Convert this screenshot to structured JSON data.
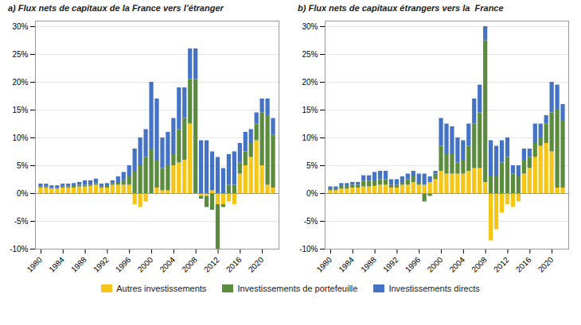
{
  "chart_data": [
    {
      "type": "bar",
      "title": "a) Flux nets de capitaux de la France vers l’étranger",
      "x": [
        1980,
        1981,
        1982,
        1983,
        1984,
        1985,
        1986,
        1987,
        1988,
        1989,
        1990,
        1991,
        1992,
        1993,
        1994,
        1995,
        1996,
        1997,
        1998,
        1999,
        2000,
        2001,
        2002,
        2003,
        2004,
        2005,
        2006,
        2007,
        2008,
        2009,
        2010,
        2011,
        2012,
        2013,
        2014,
        2015,
        2016,
        2017,
        2018,
        2019,
        2020,
        2021,
        2022
      ],
      "series": [
        {
          "name": "Autres investissements",
          "color": "#F5C518",
          "values": [
            1.0,
            1.0,
            0.8,
            0.8,
            1.0,
            1.0,
            1.0,
            1.2,
            1.2,
            1.3,
            1.5,
            1.0,
            1.0,
            1.5,
            1.5,
            1.5,
            1.5,
            -2.0,
            -2.5,
            -1.5,
            0.0,
            1.0,
            0.5,
            0.5,
            5.0,
            5.5,
            6.0,
            12.5,
            0.0,
            -0.5,
            -0.5,
            0.5,
            -2.0,
            -2.0,
            -1.5,
            -2.0,
            3.5,
            5.0,
            6.5,
            9.5,
            5.0,
            1.5,
            1.0
          ]
        },
        {
          "name": "Investissements de portefeuille",
          "color": "#5B8C3E",
          "values": [
            0.2,
            0.2,
            0.1,
            0.1,
            0.2,
            0.2,
            0.3,
            0.3,
            0.3,
            0.2,
            0.3,
            0.2,
            0.3,
            0.3,
            0.5,
            0.8,
            1.5,
            4.0,
            5.0,
            6.5,
            8.0,
            5.0,
            4.0,
            4.5,
            2.0,
            6.0,
            7.5,
            8.0,
            20.5,
            -0.5,
            -2.0,
            -3.0,
            -8.0,
            -0.5,
            1.5,
            1.5,
            2.0,
            2.5,
            2.5,
            3.0,
            9.5,
            12.5,
            9.5
          ]
        },
        {
          "name": "Investissements directs",
          "color": "#4472C4",
          "values": [
            0.5,
            0.5,
            0.5,
            0.5,
            0.5,
            0.5,
            0.5,
            0.5,
            0.8,
            0.8,
            0.8,
            0.5,
            0.5,
            0.5,
            1.0,
            1.5,
            2.0,
            4.0,
            5.0,
            5.0,
            12.0,
            11.0,
            5.5,
            6.0,
            6.5,
            7.5,
            5.5,
            5.5,
            5.5,
            9.5,
            9.5,
            7.0,
            6.5,
            4.5,
            5.5,
            6.0,
            3.5,
            3.5,
            2.5,
            2.0,
            2.5,
            3.0,
            3.0
          ]
        }
      ],
      "xlim": [
        1979,
        2023
      ],
      "xticks": [
        1980,
        1984,
        1988,
        1992,
        1996,
        2000,
        2004,
        2008,
        2012,
        2016,
        2020
      ],
      "ylim": [
        -10,
        31
      ],
      "yticks": [
        {
          "value": -10,
          "label": "-10%"
        },
        {
          "value": -5,
          "label": "-5%"
        },
        {
          "value": 0,
          "label": "0%"
        },
        {
          "value": 5,
          "label": "5%"
        },
        {
          "value": 10,
          "label": "10%"
        },
        {
          "value": 15,
          "label": "15%"
        },
        {
          "value": 20,
          "label": "20%"
        },
        {
          "value": 25,
          "label": "25%"
        },
        {
          "value": 30,
          "label": "30%"
        }
      ],
      "stacked": true,
      "grid": true,
      "legend": "bottom"
    },
    {
      "type": "bar",
      "title": "b) Flux nets de capitaux étrangers vers la  France",
      "x": [
        1980,
        1981,
        1982,
        1983,
        1984,
        1985,
        1986,
        1987,
        1988,
        1989,
        1990,
        1991,
        1992,
        1993,
        1994,
        1995,
        1996,
        1997,
        1998,
        1999,
        2000,
        2001,
        2002,
        2003,
        2004,
        2005,
        2006,
        2007,
        2008,
        2009,
        2010,
        2011,
        2012,
        2013,
        2014,
        2015,
        2016,
        2017,
        2018,
        2019,
        2020,
        2021,
        2022
      ],
      "series": [
        {
          "name": "Autres investissements",
          "color": "#F5C518",
          "values": [
            0.5,
            0.5,
            0.8,
            0.8,
            1.0,
            1.0,
            1.2,
            1.2,
            1.3,
            1.5,
            1.5,
            1.0,
            1.0,
            1.5,
            1.5,
            2.0,
            1.5,
            1.5,
            2.0,
            2.5,
            4.0,
            3.5,
            3.5,
            3.5,
            3.5,
            4.0,
            4.5,
            4.5,
            2.0,
            -8.5,
            -6.5,
            -3.5,
            -2.0,
            -2.5,
            -1.5,
            3.5,
            4.5,
            6.5,
            8.5,
            9.0,
            7.5,
            1.0,
            1.0
          ]
        },
        {
          "name": "Investissements de portefeuille",
          "color": "#5B8C3E",
          "values": [
            0.2,
            0.2,
            0.5,
            0.5,
            0.5,
            0.5,
            1.0,
            1.0,
            1.0,
            1.0,
            1.0,
            0.5,
            0.5,
            0.5,
            1.0,
            1.0,
            0.5,
            -1.5,
            -0.5,
            1.0,
            4.5,
            3.5,
            3.5,
            2.0,
            2.5,
            4.5,
            8.0,
            10.0,
            25.5,
            3.0,
            3.0,
            5.5,
            6.5,
            3.5,
            3.0,
            2.5,
            2.0,
            2.5,
            1.5,
            3.5,
            7.0,
            14.0,
            12.0
          ]
        },
        {
          "name": "Investissements directs",
          "color": "#4472C4",
          "values": [
            0.5,
            0.5,
            0.5,
            0.5,
            0.5,
            0.5,
            1.0,
            1.0,
            1.5,
            1.5,
            1.5,
            1.0,
            1.0,
            1.0,
            1.0,
            1.0,
            1.5,
            2.0,
            1.0,
            0.5,
            5.0,
            5.5,
            5.0,
            4.5,
            3.5,
            4.0,
            4.5,
            5.0,
            2.5,
            6.5,
            5.5,
            4.0,
            3.5,
            1.5,
            2.0,
            2.0,
            1.5,
            3.5,
            2.5,
            1.5,
            5.5,
            4.5,
            3.0
          ]
        }
      ],
      "xlim": [
        1979,
        2023
      ],
      "xticks": [
        1980,
        1984,
        1988,
        1992,
        1996,
        2000,
        2004,
        2008,
        2012,
        2016,
        2020
      ],
      "ylim": [
        -10,
        31
      ],
      "yticks": [
        {
          "value": -10,
          "label": "-10%"
        },
        {
          "value": -5,
          "label": "-5%"
        },
        {
          "value": 0,
          "label": "0%"
        },
        {
          "value": 5,
          "label": "5%"
        },
        {
          "value": 10,
          "label": "10%"
        },
        {
          "value": 15,
          "label": "15%"
        },
        {
          "value": 20,
          "label": "20%"
        },
        {
          "value": 25,
          "label": "25%"
        },
        {
          "value": 30,
          "label": "30%"
        }
      ],
      "stacked": true,
      "grid": true,
      "legend": "bottom"
    }
  ]
}
